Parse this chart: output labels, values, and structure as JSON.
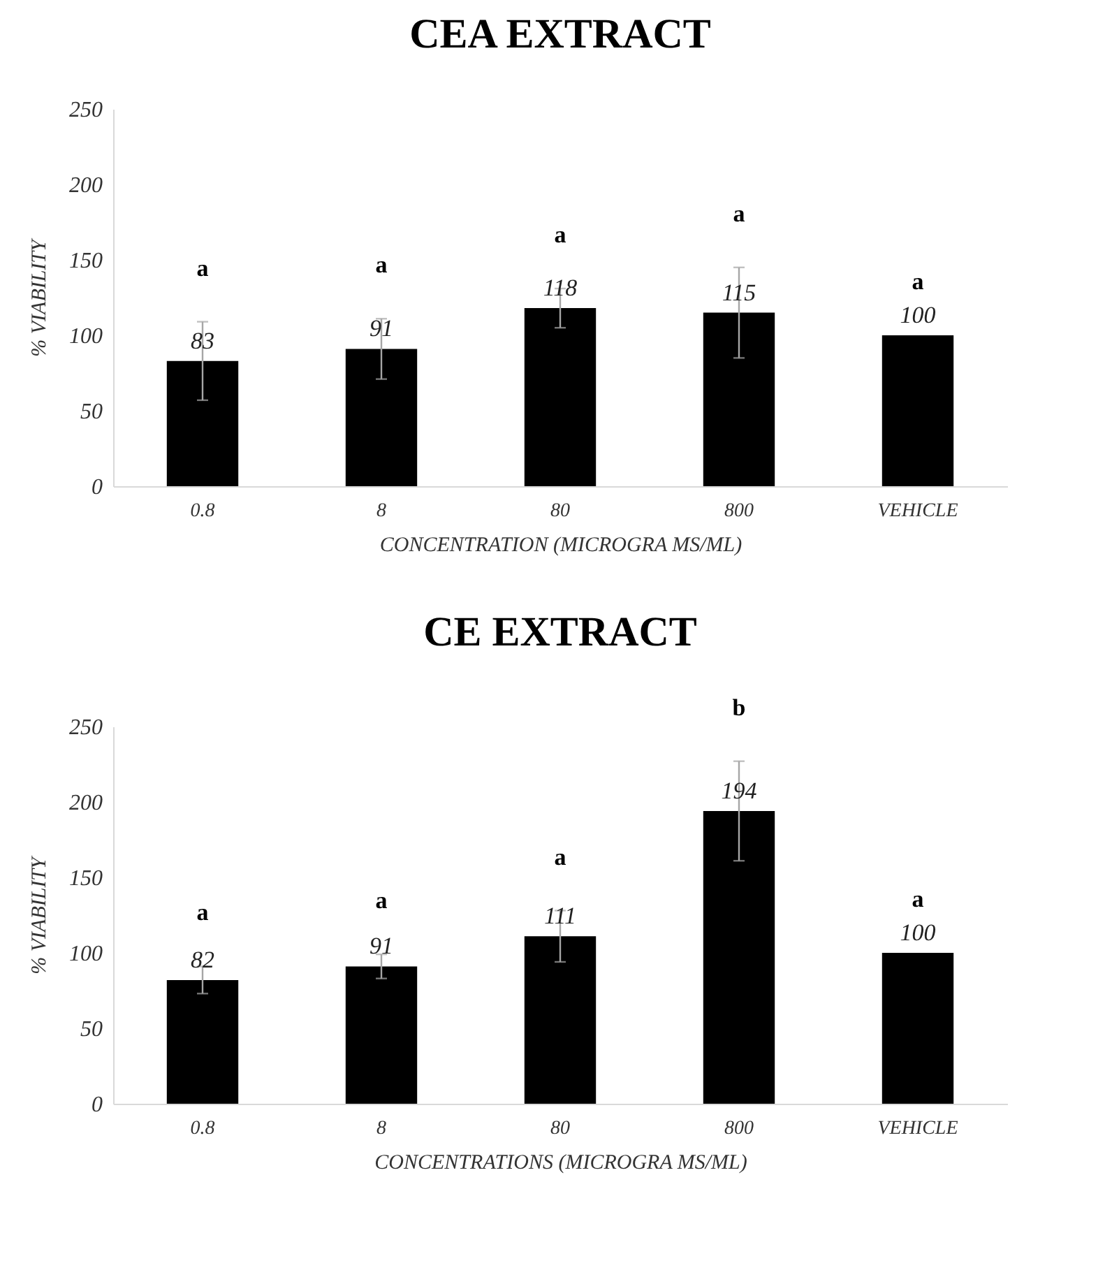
{
  "chart_data": [
    {
      "type": "bar",
      "title": "CEA EXTRACT",
      "xlabel": "CONCENTRATION (MICROGRA MS/ML)",
      "ylabel": "% VIABILITY",
      "categories": [
        "0.8",
        "8",
        "80",
        "800",
        "VEHICLE"
      ],
      "values": [
        83,
        91,
        118,
        115,
        100
      ],
      "color": "#000000",
      "errors": [
        26,
        20,
        13,
        30,
        null
      ],
      "data_labels": true,
      "ylim": [
        0,
        250
      ],
      "yticks": [
        0,
        50,
        100,
        150,
        200,
        250
      ],
      "grid": false,
      "annotations": [
        "a",
        "a",
        "a",
        "a",
        "a"
      ]
    },
    {
      "type": "bar",
      "title": "CE EXTRACT",
      "xlabel": "CONCENTRATIONS (MICROGRA MS/ML)",
      "ylabel": "% VIABILITY",
      "categories": [
        "0.8",
        "8",
        "80",
        "800",
        "VEHICLE"
      ],
      "values": [
        82,
        91,
        111,
        194,
        100
      ],
      "color": "#000000",
      "errors": [
        9,
        8,
        17,
        33,
        null
      ],
      "data_labels": true,
      "ylim": [
        0,
        250
      ],
      "yticks": [
        0,
        50,
        100,
        150,
        200,
        250
      ],
      "grid": false,
      "annotations": [
        "a",
        "a",
        "a",
        "b",
        "a"
      ]
    }
  ]
}
